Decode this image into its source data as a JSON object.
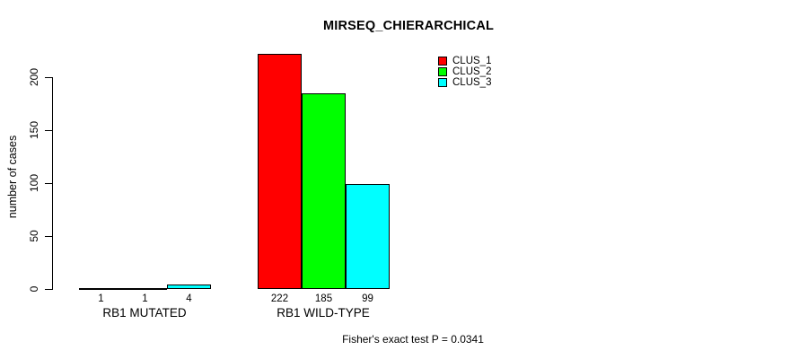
{
  "figure": {
    "background_color": "#ffffff",
    "text_color": "#000000"
  },
  "chart_data": {
    "type": "bar",
    "title": "MIRSEQ_CHIERARCHICAL",
    "xlabel": "",
    "ylabel": "number of cases",
    "categories": [
      "RB1 MUTATED",
      "RB1 WILD-TYPE"
    ],
    "series": [
      {
        "name": "CLUS_1",
        "color": "#ff0000",
        "values": [
          1,
          222
        ]
      },
      {
        "name": "CLUS_2",
        "color": "#00ff00",
        "values": [
          1,
          185
        ]
      },
      {
        "name": "CLUS_3",
        "color": "#00ffff",
        "values": [
          4,
          99
        ]
      }
    ],
    "bar_value_labels": [
      [
        "1",
        "1",
        "4"
      ],
      [
        "222",
        "185",
        "99"
      ]
    ],
    "yticks": [
      0,
      50,
      100,
      150,
      200
    ],
    "ylim": [
      0,
      222
    ],
    "grid": false,
    "legend_position": "top-right",
    "bar_border_color": "#000000",
    "annotation": "Fisher's exact test P = 0.0341"
  }
}
